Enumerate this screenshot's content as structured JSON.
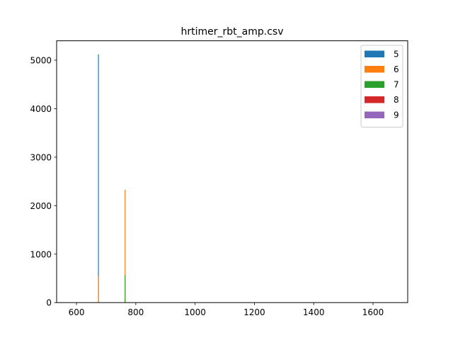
{
  "chart_data": {
    "type": "bar",
    "title": "hrtimer_rbt_amp.csv",
    "xlabel": "",
    "ylabel": "",
    "xlim": [
      533,
      1717
    ],
    "ylim": [
      0,
      5400
    ],
    "xticks": [
      600,
      800,
      1000,
      1200,
      1400,
      1600
    ],
    "yticks": [
      0,
      1000,
      2000,
      3000,
      4000,
      5000
    ],
    "grid": false,
    "legend_position": "top-right",
    "series": [
      {
        "name": "5",
        "color": "#1f77b4",
        "bars": [
          {
            "x": 674,
            "value": 5120
          }
        ]
      },
      {
        "name": "6",
        "color": "#ff7f0e",
        "bars": [
          {
            "x": 674,
            "value": 540
          },
          {
            "x": 764,
            "value": 2330
          }
        ]
      },
      {
        "name": "7",
        "color": "#2ca02c",
        "bars": [
          {
            "x": 764,
            "value": 570
          }
        ]
      },
      {
        "name": "8",
        "color": "#d62728",
        "bars": []
      },
      {
        "name": "9",
        "color": "#9467bd",
        "bars": []
      }
    ]
  }
}
